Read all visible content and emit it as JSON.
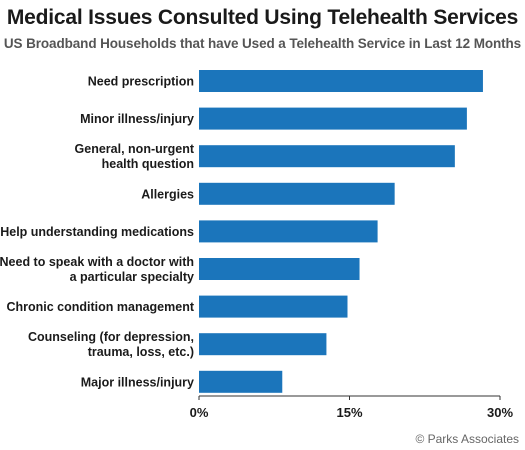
{
  "colors": {
    "bar": "#1b75bb",
    "axis": "#333333",
    "text": "#1a1a1a"
  },
  "source": "© Parks Associates",
  "chart_data": {
    "type": "bar",
    "orientation": "horizontal",
    "title": "Medical Issues Consulted Using Telehealth Services",
    "subtitle": "US Broadband Households that have Used a Telehealth Service in Last 12 Months",
    "categories": [
      [
        "Need prescription"
      ],
      [
        "Minor illness/injury"
      ],
      [
        "General, non-urgent",
        "health question"
      ],
      [
        "Allergies"
      ],
      [
        "Help understanding medications"
      ],
      [
        "Need to speak with a doctor with",
        "a particular specialty"
      ],
      [
        "Chronic condition management"
      ],
      [
        "Counseling (for depression,",
        "trauma, loss, etc.)"
      ],
      [
        "Major illness/injury"
      ]
    ],
    "values": [
      28.3,
      26.7,
      25.5,
      19.5,
      17.8,
      16.0,
      14.8,
      12.7,
      8.3
    ],
    "xlim": [
      0,
      30
    ],
    "ticks": [
      0,
      15,
      30
    ],
    "tick_labels": [
      "0%",
      "15%",
      "30%"
    ],
    "grid": false,
    "legend": "none"
  }
}
